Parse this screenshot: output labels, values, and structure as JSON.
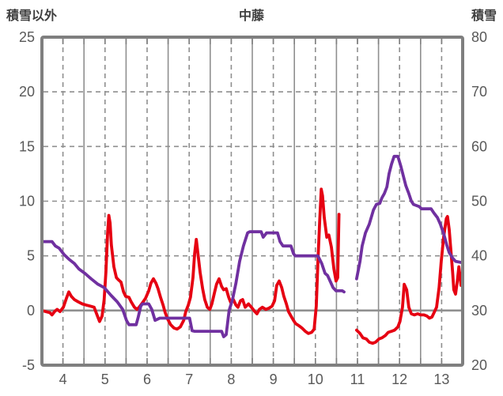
{
  "header": {
    "left_axis_title": "積雪以外",
    "title": "中藤",
    "right_axis_title": "積雪"
  },
  "colors": {
    "red_series": "#e60012",
    "purple_series": "#7030a0",
    "grid": "#8f8f8f",
    "border": "#7f7f7f",
    "tick_text": "#595959",
    "title_text": "#3f3f3f"
  },
  "chart_data": {
    "type": "line",
    "title": "中藤",
    "left_axis": {
      "title": "積雪以外",
      "min": -5,
      "max": 25,
      "ticks": [
        25,
        20,
        15,
        10,
        5,
        0,
        -5
      ],
      "zero_line": 0
    },
    "right_axis": {
      "title": "積雪",
      "min": 20,
      "max": 80,
      "ticks": [
        80,
        70,
        60,
        50,
        40,
        30,
        20
      ]
    },
    "x_axis": {
      "min": 4,
      "max": 14,
      "labels": [
        "4",
        "5",
        "6",
        "7",
        "8",
        "9",
        "10",
        "11",
        "12",
        "13"
      ],
      "label_at_half": true,
      "solid_grid_at_integers": true,
      "dashed_grid_at_halves": true,
      "minor_tick_step": 0.5
    },
    "grid": {
      "horizontal": "dashed",
      "vertical_month_boundary": "solid",
      "vertical_mid_month": "dashed"
    },
    "legend": "none",
    "series": [
      {
        "name": "積雪以外",
        "axis": "left",
        "color": "#e60012",
        "segments": [
          [
            [
              4.0,
              0
            ],
            [
              4.09,
              -0.1
            ],
            [
              4.19,
              -0.2
            ],
            [
              4.24,
              -0.4
            ],
            [
              4.3,
              -0.1
            ],
            [
              4.36,
              0.1
            ],
            [
              4.43,
              -0.1
            ],
            [
              4.51,
              0.3
            ],
            [
              4.58,
              1.1
            ],
            [
              4.64,
              1.7
            ],
            [
              4.7,
              1.3
            ],
            [
              4.77,
              1.0
            ],
            [
              4.86,
              0.8
            ],
            [
              4.96,
              0.6
            ],
            [
              5.05,
              0.5
            ],
            [
              5.15,
              0.4
            ],
            [
              5.24,
              0.3
            ],
            [
              5.32,
              -0.5
            ],
            [
              5.37,
              -1.0
            ],
            [
              5.43,
              -0.5
            ],
            [
              5.48,
              1.0
            ],
            [
              5.52,
              3.5
            ],
            [
              5.56,
              7.0
            ],
            [
              5.59,
              8.7
            ],
            [
              5.62,
              8.0
            ],
            [
              5.65,
              6.0
            ],
            [
              5.71,
              4.0
            ],
            [
              5.77,
              3.0
            ],
            [
              5.82,
              2.8
            ],
            [
              5.88,
              2.6
            ],
            [
              5.94,
              1.7
            ],
            [
              5.99,
              1.3
            ],
            [
              6.07,
              1.2
            ],
            [
              6.12,
              0.8
            ],
            [
              6.2,
              0.3
            ],
            [
              6.26,
              0.1
            ],
            [
              6.31,
              0.3
            ],
            [
              6.39,
              0.7
            ],
            [
              6.46,
              1.1
            ],
            [
              6.54,
              1.8
            ],
            [
              6.59,
              2.5
            ],
            [
              6.65,
              2.9
            ],
            [
              6.71,
              2.5
            ],
            [
              6.76,
              2.0
            ],
            [
              6.82,
              1.2
            ],
            [
              6.88,
              0.5
            ],
            [
              6.93,
              -0.2
            ],
            [
              6.99,
              -0.8
            ],
            [
              7.06,
              -1.3
            ],
            [
              7.14,
              -1.6
            ],
            [
              7.21,
              -1.7
            ],
            [
              7.29,
              -1.5
            ],
            [
              7.37,
              -0.9
            ],
            [
              7.42,
              -0.1
            ],
            [
              7.48,
              0.5
            ],
            [
              7.53,
              1.2
            ],
            [
              7.59,
              3.0
            ],
            [
              7.63,
              5.2
            ],
            [
              7.67,
              6.5
            ],
            [
              7.7,
              5.5
            ],
            [
              7.76,
              3.5
            ],
            [
              7.82,
              2.0
            ],
            [
              7.87,
              1.0
            ],
            [
              7.93,
              0.3
            ],
            [
              7.99,
              0.1
            ],
            [
              8.04,
              0.6
            ],
            [
              8.1,
              1.6
            ],
            [
              8.15,
              2.4
            ],
            [
              8.21,
              2.9
            ],
            [
              8.27,
              2.2
            ],
            [
              8.32,
              1.9
            ],
            [
              8.38,
              2.0
            ],
            [
              8.44,
              1.2
            ],
            [
              8.49,
              0.7
            ],
            [
              8.55,
              1.0
            ],
            [
              8.61,
              0.5
            ],
            [
              8.66,
              0.3
            ],
            [
              8.72,
              0.9
            ],
            [
              8.77,
              1.0
            ],
            [
              8.83,
              0.3
            ],
            [
              8.91,
              0.6
            ],
            [
              8.98,
              0.3
            ],
            [
              9.06,
              -0.1
            ],
            [
              9.11,
              -0.3
            ],
            [
              9.17,
              0.1
            ],
            [
              9.24,
              0.3
            ],
            [
              9.32,
              0.1
            ],
            [
              9.39,
              0.2
            ],
            [
              9.47,
              0.4
            ],
            [
              9.53,
              0.9
            ],
            [
              9.58,
              2.3
            ],
            [
              9.64,
              2.7
            ],
            [
              9.7,
              2.1
            ],
            [
              9.75,
              1.3
            ],
            [
              9.81,
              0.6
            ],
            [
              9.86,
              -0.1
            ],
            [
              9.92,
              -0.5
            ],
            [
              9.98,
              -0.9
            ],
            [
              10.03,
              -1.2
            ],
            [
              10.11,
              -1.4
            ],
            [
              10.18,
              -1.6
            ],
            [
              10.26,
              -1.9
            ],
            [
              10.33,
              -2.1
            ],
            [
              10.41,
              -2.0
            ],
            [
              10.47,
              -1.7
            ],
            [
              10.52,
              0.4
            ],
            [
              10.56,
              4.5
            ],
            [
              10.6,
              8.0
            ],
            [
              10.64,
              11.1
            ],
            [
              10.67,
              10.5
            ],
            [
              10.71,
              8.5
            ],
            [
              10.77,
              6.7
            ],
            [
              10.82,
              6.9
            ],
            [
              10.88,
              5.8
            ],
            [
              10.94,
              3.8
            ],
            [
              10.99,
              2.7
            ],
            [
              11.03,
              3.0
            ],
            [
              11.06,
              8.8
            ]
          ],
          [
            [
              11.48,
              -1.8
            ],
            [
              11.56,
              -2.1
            ],
            [
              11.63,
              -2.5
            ],
            [
              11.71,
              -2.6
            ],
            [
              11.78,
              -2.9
            ],
            [
              11.86,
              -3.0
            ],
            [
              11.93,
              -2.9
            ],
            [
              12.01,
              -2.6
            ],
            [
              12.08,
              -2.5
            ],
            [
              12.16,
              -2.3
            ],
            [
              12.23,
              -2.0
            ],
            [
              12.31,
              -1.9
            ],
            [
              12.38,
              -1.8
            ],
            [
              12.46,
              -1.5
            ],
            [
              12.51,
              -1.0
            ],
            [
              12.57,
              0.3
            ],
            [
              12.61,
              2.4
            ],
            [
              12.67,
              1.9
            ],
            [
              12.72,
              0.3
            ],
            [
              12.78,
              -0.3
            ],
            [
              12.85,
              -0.4
            ],
            [
              12.93,
              -0.3
            ],
            [
              13.0,
              -0.4
            ],
            [
              13.08,
              -0.4
            ],
            [
              13.15,
              -0.5
            ],
            [
              13.21,
              -0.7
            ],
            [
              13.27,
              -0.6
            ],
            [
              13.32,
              -0.2
            ],
            [
              13.38,
              0.3
            ],
            [
              13.44,
              2.1
            ],
            [
              13.49,
              4.5
            ],
            [
              13.55,
              6.8
            ],
            [
              13.61,
              8.4
            ],
            [
              13.64,
              8.6
            ],
            [
              13.68,
              7.4
            ],
            [
              13.72,
              5.5
            ],
            [
              13.76,
              3.6
            ],
            [
              13.79,
              1.9
            ],
            [
              13.83,
              1.5
            ],
            [
              13.87,
              2.6
            ],
            [
              13.91,
              4.0
            ],
            [
              13.94,
              3.0
            ],
            [
              13.96,
              2.3
            ],
            [
              13.98,
              3.4
            ]
          ]
        ]
      },
      {
        "name": "積雪",
        "axis": "right",
        "color": "#7030a0",
        "segments": [
          [
            [
              4.0,
              42.6
            ],
            [
              4.24,
              42.6
            ],
            [
              4.32,
              41.8
            ],
            [
              4.41,
              41.4
            ],
            [
              4.53,
              40.2
            ],
            [
              4.64,
              39.4
            ],
            [
              4.77,
              38.6
            ],
            [
              4.88,
              37.6
            ],
            [
              5.02,
              36.8
            ],
            [
              5.17,
              35.8
            ],
            [
              5.33,
              34.8
            ],
            [
              5.48,
              34.2
            ],
            [
              5.64,
              32.8
            ],
            [
              5.79,
              31.6
            ],
            [
              5.92,
              30.2
            ],
            [
              6.01,
              28.2
            ],
            [
              6.07,
              27.4
            ],
            [
              6.24,
              27.4
            ],
            [
              6.29,
              28.8
            ],
            [
              6.35,
              30.8
            ],
            [
              6.39,
              31.2
            ],
            [
              6.54,
              31.2
            ],
            [
              6.61,
              30.2
            ],
            [
              6.69,
              28.2
            ],
            [
              6.8,
              28.6
            ],
            [
              7.51,
              28.6
            ],
            [
              7.57,
              26.3
            ],
            [
              7.63,
              26.2
            ],
            [
              8.27,
              26.2
            ],
            [
              8.32,
              25.2
            ],
            [
              8.38,
              25.6
            ],
            [
              8.45,
              30.0
            ],
            [
              8.53,
              32.0
            ],
            [
              8.61,
              35.0
            ],
            [
              8.7,
              39.0
            ],
            [
              8.79,
              41.8
            ],
            [
              8.89,
              44.2
            ],
            [
              8.94,
              44.4
            ],
            [
              9.21,
              44.4
            ],
            [
              9.26,
              43.4
            ],
            [
              9.34,
              44.2
            ],
            [
              9.6,
              44.2
            ],
            [
              9.66,
              42.6
            ],
            [
              9.73,
              41.8
            ],
            [
              9.92,
              41.8
            ],
            [
              9.98,
              40.4
            ],
            [
              10.02,
              40.0
            ],
            [
              10.56,
              40.0
            ],
            [
              10.65,
              38.6
            ],
            [
              10.73,
              36.8
            ],
            [
              10.79,
              36.4
            ],
            [
              10.86,
              35.2
            ],
            [
              10.92,
              34.2
            ],
            [
              10.99,
              33.6
            ],
            [
              11.14,
              33.6
            ],
            [
              11.18,
              33.4
            ]
          ],
          [
            [
              11.48,
              35.8
            ],
            [
              11.56,
              39.0
            ],
            [
              11.61,
              41.8
            ],
            [
              11.69,
              44.2
            ],
            [
              11.78,
              45.8
            ],
            [
              11.88,
              48.4
            ],
            [
              11.95,
              49.4
            ],
            [
              12.03,
              49.6
            ],
            [
              12.08,
              50.6
            ],
            [
              12.14,
              51.4
            ],
            [
              12.2,
              52.6
            ],
            [
              12.25,
              55.0
            ],
            [
              12.31,
              56.8
            ],
            [
              12.37,
              58.2
            ],
            [
              12.46,
              58.2
            ],
            [
              12.53,
              56.4
            ],
            [
              12.59,
              54.6
            ],
            [
              12.65,
              52.8
            ],
            [
              12.72,
              51.4
            ],
            [
              12.78,
              50.0
            ],
            [
              12.83,
              49.4
            ],
            [
              12.97,
              49.0
            ],
            [
              13.02,
              48.6
            ],
            [
              13.25,
              48.6
            ],
            [
              13.32,
              47.8
            ],
            [
              13.4,
              47.0
            ],
            [
              13.47,
              45.8
            ],
            [
              13.55,
              44.0
            ],
            [
              13.62,
              42.0
            ],
            [
              13.68,
              40.6
            ],
            [
              13.76,
              39.6
            ],
            [
              13.83,
              39.0
            ],
            [
              13.96,
              38.8
            ]
          ]
        ]
      }
    ]
  }
}
